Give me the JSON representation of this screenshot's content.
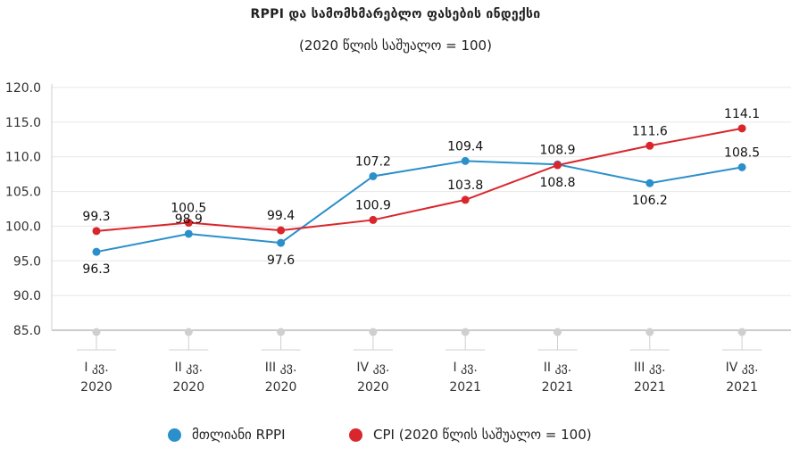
{
  "chart_data": {
    "type": "line",
    "title": "RPPI და სამომხმარებლო ფასების ინდექსი",
    "subtitle": "(2020 წლის საშუალო = 100)",
    "categories": [
      [
        "I კვ.",
        "2020"
      ],
      [
        "II კვ.",
        "2020"
      ],
      [
        "III კვ.",
        "2020"
      ],
      [
        "IV კვ.",
        "2020"
      ],
      [
        "I კვ.",
        "2021"
      ],
      [
        "II კვ.",
        "2021"
      ],
      [
        "III კვ.",
        "2021"
      ],
      [
        "IV კვ.",
        "2021"
      ]
    ],
    "series": [
      {
        "name": "მთლიანი RPPI",
        "color": "#2b8fcb",
        "values": [
          96.3,
          98.9,
          97.6,
          107.2,
          109.4,
          108.9,
          106.2,
          108.5
        ],
        "labels": [
          "96.3",
          "98.9",
          "97.6",
          "107.2",
          "109.4",
          "108.9",
          "106.2",
          "108.5"
        ]
      },
      {
        "name": "CPI (2020 წლის საშუალო = 100)",
        "color": "#d9262c",
        "values": [
          99.3,
          100.5,
          99.4,
          100.9,
          103.8,
          108.8,
          111.6,
          114.1
        ],
        "labels": [
          "99.3",
          "100.5",
          "99.4",
          "100.9",
          "103.8",
          "108.8",
          "111.6",
          "114.1"
        ]
      }
    ],
    "yticks": [
      "120.0",
      "115.0",
      "110.0",
      "105.0",
      "100.0",
      "95.0",
      "90.0",
      "85.0"
    ],
    "ylim": [
      85,
      120
    ],
    "grid": true,
    "legend_position": "bottom"
  }
}
